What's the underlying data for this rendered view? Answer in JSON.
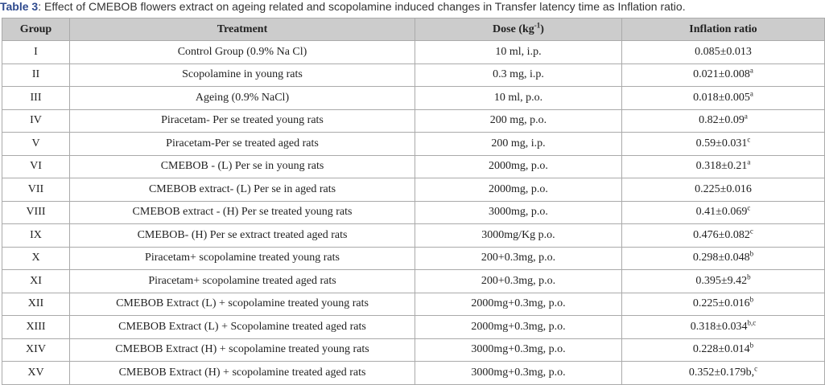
{
  "caption": {
    "label": "Table 3",
    "text": ": Effect of CMEBOB flowers extract on ageing related and scopolamine induced changes in Transfer latency time as Inflation ratio."
  },
  "headers": {
    "group": "Group",
    "treatment": "Treatment",
    "dose": "Dose  (kg",
    "dose_sup": "-1",
    "dose_end": ")",
    "ratio": "Inflation ratio"
  },
  "rows": [
    {
      "group": "I",
      "treatment": "Control Group (0.9% Na Cl)",
      "dose": "10 ml, i.p.",
      "ratio": "0.085±0.013",
      "sup": ""
    },
    {
      "group": "II",
      "treatment": "Scopolamine in young  rats",
      "dose": "0.3 mg, i.p.",
      "ratio": "0.021±0.008",
      "sup": "a"
    },
    {
      "group": "III",
      "treatment": "Ageing (0.9% NaCl)",
      "dose": "10 ml, p.o.",
      "ratio": "0.018±0.005",
      "sup": "a"
    },
    {
      "group": "IV",
      "treatment": "Piracetam- Per se treated young rats",
      "dose": "200 mg, p.o.",
      "ratio": "0.82±0.09",
      "sup": "a"
    },
    {
      "group": "V",
      "treatment": "Piracetam-Per se treated aged rats",
      "dose": "200 mg, i.p.",
      "ratio": "0.59±0.031",
      "sup": "c"
    },
    {
      "group": "VI",
      "treatment": "CMEBOB - (L) Per se in young rats",
      "dose": "2000mg, p.o.",
      "ratio": "0.318±0.21",
      "sup": "a"
    },
    {
      "group": "VII",
      "treatment": "CMEBOB extract- (L) Per se  in aged rats",
      "dose": "2000mg, p.o.",
      "ratio": "0.225±0.016",
      "sup": ""
    },
    {
      "group": "VIII",
      "treatment": "CMEBOB extract - (H) Per se treated young rats",
      "dose": "3000mg, p.o.",
      "ratio": "0.41±0.069",
      "sup": "c"
    },
    {
      "group": "IX",
      "treatment": "CMEBOB- (H) Per se extract treated aged rats",
      "dose": "3000mg/Kg p.o.",
      "ratio": "0.476±0.082",
      "sup": "c"
    },
    {
      "group": "X",
      "treatment": "Piracetam+ scopolamine treated young rats",
      "dose": "200+0.3mg, p.o.",
      "ratio": "0.298±0.048",
      "sup": "b"
    },
    {
      "group": "XI",
      "treatment": "Piracetam+ scopolamine treated aged rats",
      "dose": "200+0.3mg, p.o.",
      "ratio": "0.395±9.42",
      "sup": "b"
    },
    {
      "group": "XII",
      "treatment": "CMEBOB Extract (L) + scopolamine treated young rats",
      "dose": "2000mg+0.3mg, p.o.",
      "ratio": "0.225±0.016",
      "sup": "b"
    },
    {
      "group": "XIII",
      "treatment": "CMEBOB Extract (L) + Scopolamine treated aged rats",
      "dose": "2000mg+0.3mg, p.o.",
      "ratio": "0.318±0.034",
      "sup": "b,c"
    },
    {
      "group": "XIV",
      "treatment": "CMEBOB Extract (H) + scopolamine treated young rats",
      "dose": "3000mg+0.3mg, p.o.",
      "ratio": "0.228±0.014",
      "sup": "b"
    },
    {
      "group": "XV",
      "treatment": "CMEBOB Extract (H) + scopolamine treated aged rats",
      "dose": "3000mg+0.3mg, p.o.",
      "ratio": "0.352±0.179b,",
      "sup": "c"
    }
  ]
}
